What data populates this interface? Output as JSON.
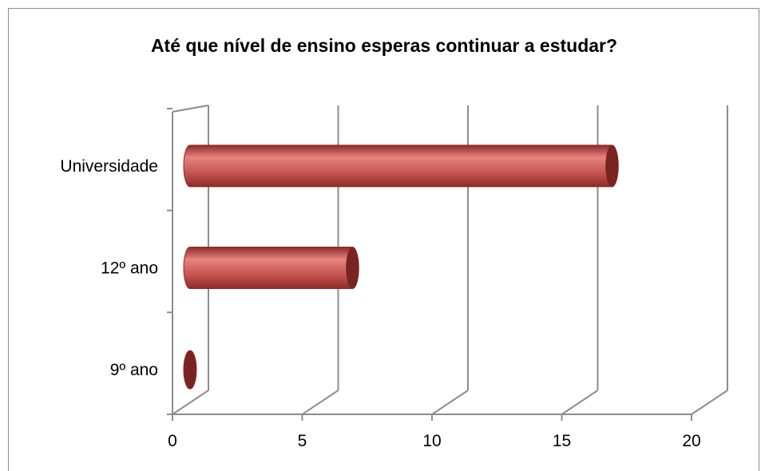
{
  "chart_data": {
    "type": "bar",
    "orientation": "horizontal",
    "style": "3d-cylinder",
    "title": "Até que nível de ensino esperas continuar a estudar?",
    "categories": [
      "Universidade",
      "12º ano",
      "9º ano"
    ],
    "values": [
      16.5,
      6.5,
      0
    ],
    "xlim": [
      0,
      20
    ],
    "x_ticks": [
      "0",
      "5",
      "10",
      "15",
      "20"
    ],
    "xlabel": "",
    "ylabel": "",
    "grid": true,
    "legend": "none",
    "colors": {
      "bar_body": "#c0504d",
      "bar_highlight": "#e8837f",
      "bar_shadow": "#8e2a28",
      "bar_cap": "#7a2422",
      "axis": "#8c8c8c"
    }
  }
}
